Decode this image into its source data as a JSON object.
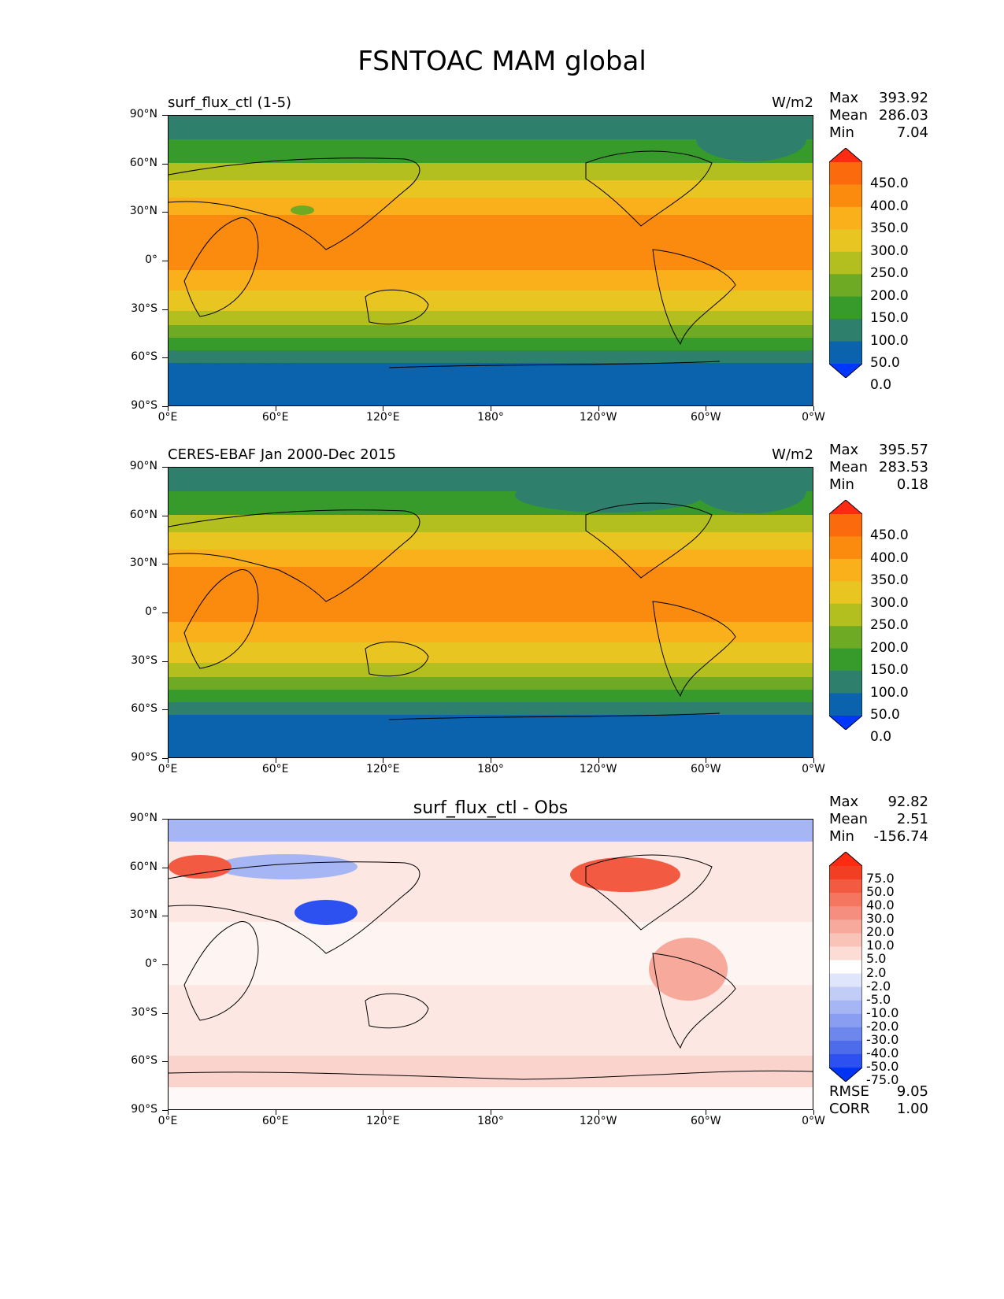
{
  "figure_title": "FSNTOAC MAM global",
  "units": "W/m2",
  "lat_labels": [
    "90°N",
    "60°N",
    "30°N",
    "0°",
    "30°S",
    "60°S",
    "90°S"
  ],
  "lon_labels": [
    "0°E",
    "60°E",
    "120°E",
    "180°",
    "120°W",
    "60°W",
    "0°W"
  ],
  "colorbar_main": {
    "labels": [
      "450.0",
      "400.0",
      "350.0",
      "300.0",
      "250.0",
      "200.0",
      "150.0",
      "100.0",
      "50.0",
      "0.0"
    ],
    "colors": [
      "#ff2a12",
      "#fb6a0d",
      "#fa8b0f",
      "#fab01a",
      "#e8c520",
      "#b3bf1f",
      "#6eaa24",
      "#379b2b",
      "#2e7f6c",
      "#0a63ac",
      "#0037ff"
    ]
  },
  "colorbar_diff": {
    "labels": [
      "75.0",
      "50.0",
      "40.0",
      "30.0",
      "20.0",
      "10.0",
      "5.0",
      "2.0",
      "-2.0",
      "-5.0",
      "-10.0",
      "-20.0",
      "-30.0",
      "-40.0",
      "-50.0",
      "-75.0"
    ],
    "colors": [
      "#ff2a12",
      "#f23f24",
      "#f35a42",
      "#f47560",
      "#f58e7e",
      "#f7a99b",
      "#f9c3b8",
      "#fcdcd5",
      "#ffffff",
      "#dfe5fb",
      "#c2cdf7",
      "#a6b5f4",
      "#8a9ef1",
      "#6e87ed",
      "#4d6cec",
      "#2d51f0",
      "#0034f5"
    ]
  },
  "panels": [
    {
      "title": "surf_flux_ctl (1-5)",
      "units": "W/m2",
      "stats": {
        "max_label": "Max",
        "max": "393.92",
        "mean_label": "Mean",
        "mean": "286.03",
        "min_label": "Min",
        "min": "7.04"
      }
    },
    {
      "title": "CERES-EBAF Jan 2000-Dec 2015",
      "units": "W/m2",
      "stats": {
        "max_label": "Max",
        "max": "395.57",
        "mean_label": "Mean",
        "mean": "283.53",
        "min_label": "Min",
        "min": "0.18"
      }
    },
    {
      "title": "surf_flux_ctl - Obs",
      "stats": {
        "max_label": "Max",
        "max": "92.82",
        "mean_label": "Mean",
        "mean": "2.51",
        "min_label": "Min",
        "min": "-156.74"
      },
      "error_stats": {
        "rmse_label": "RMSE",
        "rmse": "9.05",
        "corr_label": "CORR",
        "corr": "1.00"
      }
    }
  ]
}
